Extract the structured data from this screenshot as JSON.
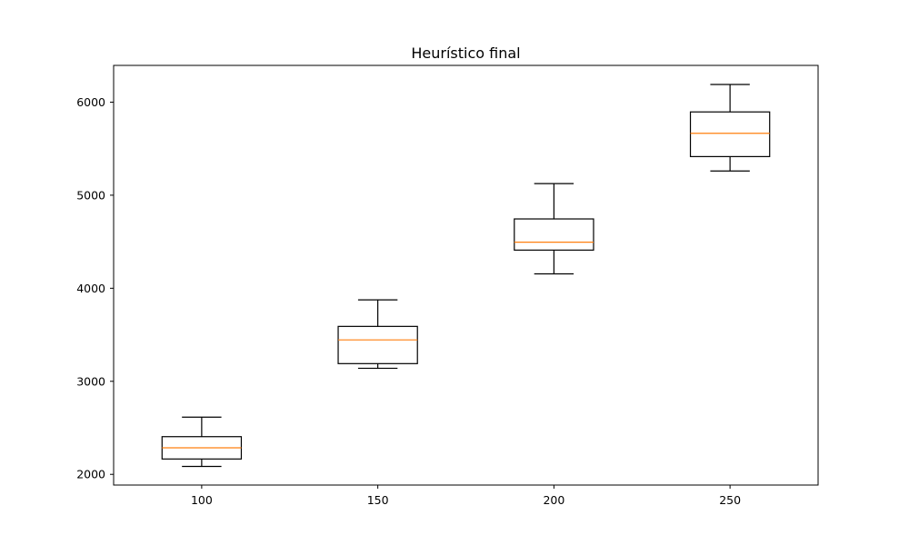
{
  "chart_data": {
    "type": "box",
    "title": "Heurístico final",
    "xlabel": "",
    "ylabel": "",
    "categories": [
      "100",
      "150",
      "200",
      "250"
    ],
    "boxes": [
      {
        "category": "100",
        "whisker_low": 2085,
        "q1": 2165,
        "median": 2285,
        "q3": 2405,
        "whisker_high": 2615
      },
      {
        "category": "150",
        "whisker_low": 3140,
        "q1": 3190,
        "median": 3445,
        "q3": 3590,
        "whisker_high": 3875
      },
      {
        "category": "200",
        "whisker_low": 4155,
        "q1": 4410,
        "median": 4495,
        "q3": 4745,
        "whisker_high": 5125
      },
      {
        "category": "250",
        "whisker_low": 5260,
        "q1": 5415,
        "median": 5665,
        "q3": 5895,
        "whisker_high": 6190
      }
    ],
    "xlim": [
      75,
      275
    ],
    "ylim": [
      1885,
      6395
    ],
    "y_ticks": [
      2000,
      3000,
      4000,
      5000,
      6000
    ],
    "grid": false,
    "legend": "none",
    "colors": {
      "box": "#000000",
      "median": "#ff7f0e",
      "axes": "#000000",
      "background": "#ffffff"
    }
  }
}
